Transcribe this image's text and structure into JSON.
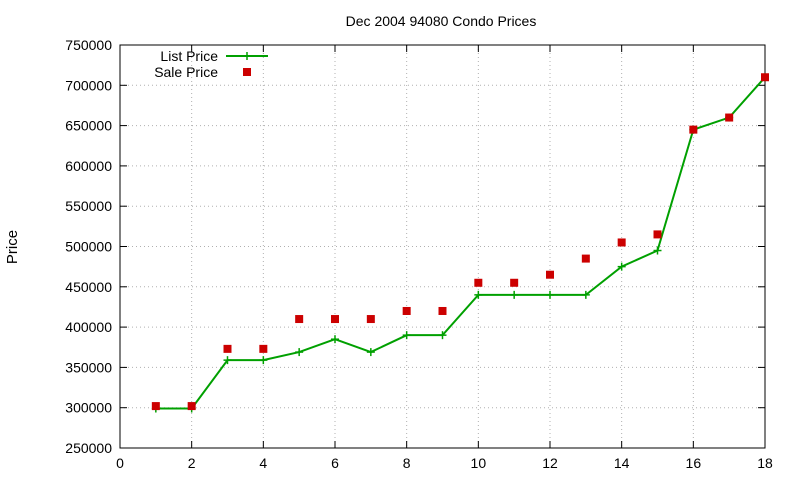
{
  "chart_data": {
    "type": "line",
    "title": "Dec 2004 94080 Condo Prices",
    "xlabel": "",
    "ylabel": "Price",
    "xlim": [
      0,
      18
    ],
    "ylim": [
      250000,
      750000
    ],
    "x_ticks": [
      0,
      2,
      4,
      6,
      8,
      10,
      12,
      14,
      16,
      18
    ],
    "y_ticks": [
      250000,
      300000,
      350000,
      400000,
      450000,
      500000,
      550000,
      600000,
      650000,
      700000,
      750000
    ],
    "grid": true,
    "legend_position": "top-left",
    "series": [
      {
        "name": "List Price",
        "style": "line-points",
        "marker": "plus",
        "color": "#00a000",
        "x": [
          1,
          2,
          3,
          4,
          5,
          6,
          7,
          8,
          9,
          10,
          11,
          12,
          13,
          14,
          15,
          16,
          17,
          18
        ],
        "y": [
          299000,
          299000,
          359000,
          359000,
          369000,
          385000,
          369000,
          390000,
          390000,
          440000,
          440000,
          440000,
          440000,
          475000,
          495000,
          645000,
          660000,
          710000
        ]
      },
      {
        "name": "Sale Price",
        "style": "points",
        "marker": "square",
        "color": "#cc0000",
        "x": [
          1,
          2,
          3,
          4,
          5,
          6,
          7,
          8,
          9,
          10,
          11,
          12,
          13,
          14,
          15,
          16,
          17,
          18
        ],
        "y": [
          302000,
          302000,
          373000,
          373000,
          410000,
          410000,
          410000,
          420000,
          420000,
          455000,
          455000,
          465000,
          485000,
          505000,
          515000,
          645000,
          660000,
          710000
        ]
      }
    ]
  }
}
